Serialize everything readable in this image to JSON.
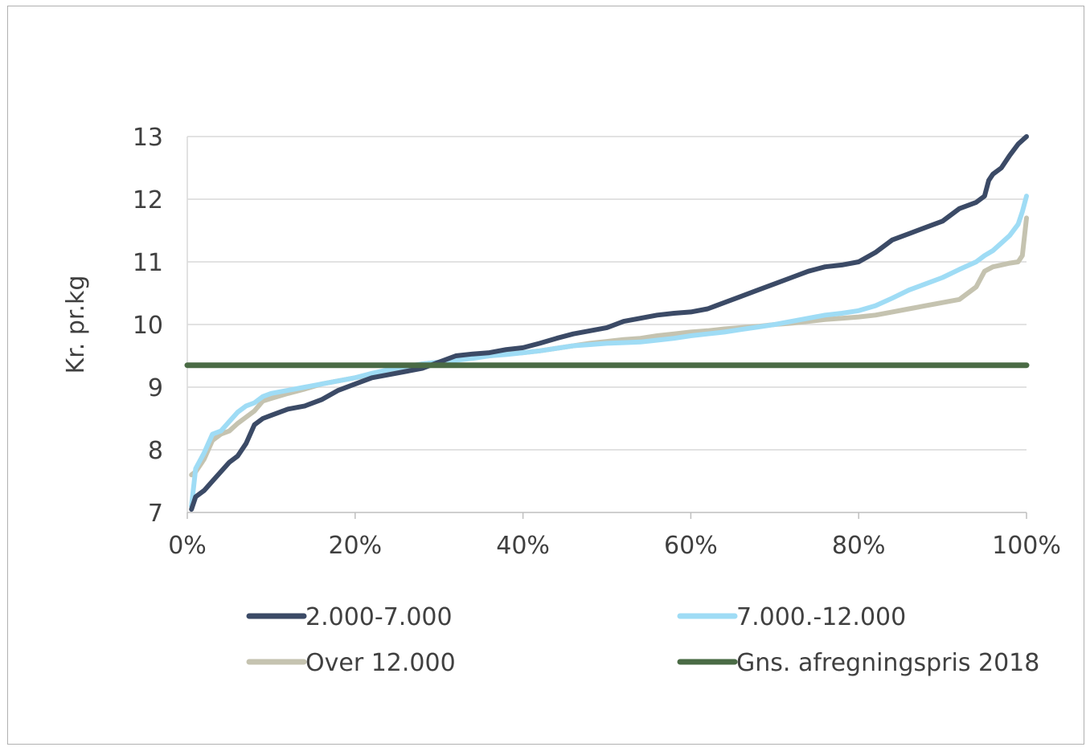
{
  "chart_data": {
    "type": "line",
    "title": "",
    "xlabel": "",
    "ylabel": "Kr. pr.kg",
    "xlim": [
      0,
      100
    ],
    "ylim": [
      7,
      13
    ],
    "x_ticks": [
      0,
      20,
      40,
      60,
      80,
      100
    ],
    "x_tick_labels": [
      "0%",
      "20%",
      "40%",
      "60%",
      "80%",
      "100%"
    ],
    "y_ticks": [
      7,
      8,
      9,
      10,
      11,
      12,
      13
    ],
    "y_tick_labels": [
      "7",
      "8",
      "9",
      "10",
      "11",
      "12",
      "13"
    ],
    "grid": "horizontal",
    "legend_position": "bottom",
    "series": [
      {
        "name": "2.000-7.000",
        "color": "#3b4a66",
        "x": [
          0.5,
          1,
          2,
          3,
          4,
          5,
          6,
          7,
          8,
          9,
          10,
          12,
          14,
          16,
          18,
          20,
          22,
          24,
          26,
          28,
          30,
          32,
          34,
          36,
          38,
          40,
          42,
          44,
          46,
          48,
          50,
          52,
          54,
          56,
          58,
          60,
          62,
          64,
          66,
          68,
          70,
          72,
          74,
          76,
          78,
          80,
          82,
          84,
          86,
          88,
          90,
          92,
          94,
          95,
          95.5,
          96,
          97,
          98,
          99,
          100
        ],
        "values": [
          7.05,
          7.25,
          7.35,
          7.5,
          7.65,
          7.8,
          7.9,
          8.1,
          8.4,
          8.5,
          8.55,
          8.65,
          8.7,
          8.8,
          8.95,
          9.05,
          9.15,
          9.2,
          9.25,
          9.3,
          9.4,
          9.5,
          9.53,
          9.55,
          9.6,
          9.63,
          9.7,
          9.78,
          9.85,
          9.9,
          9.95,
          10.05,
          10.1,
          10.15,
          10.18,
          10.2,
          10.25,
          10.35,
          10.45,
          10.55,
          10.65,
          10.75,
          10.85,
          10.92,
          10.95,
          11.0,
          11.15,
          11.35,
          11.45,
          11.55,
          11.65,
          11.85,
          11.95,
          12.05,
          12.3,
          12.4,
          12.5,
          12.7,
          12.88,
          13.0
        ]
      },
      {
        "name": "7.000.-12.000",
        "color": "#9fdcf5",
        "x": [
          0.5,
          1,
          2,
          3,
          4,
          5,
          6,
          7,
          8,
          9,
          10,
          12,
          14,
          16,
          18,
          20,
          22,
          24,
          26,
          28,
          30,
          32,
          34,
          36,
          38,
          40,
          42,
          44,
          46,
          48,
          50,
          52,
          54,
          56,
          58,
          60,
          62,
          64,
          66,
          68,
          70,
          72,
          74,
          76,
          78,
          80,
          82,
          84,
          86,
          88,
          90,
          92,
          94,
          95,
          96,
          97,
          98,
          99,
          99.5,
          100
        ],
        "values": [
          7.1,
          7.7,
          7.95,
          8.25,
          8.3,
          8.45,
          8.6,
          8.7,
          8.75,
          8.85,
          8.9,
          8.95,
          9.0,
          9.05,
          9.1,
          9.15,
          9.22,
          9.28,
          9.33,
          9.37,
          9.4,
          9.43,
          9.46,
          9.5,
          9.52,
          9.55,
          9.58,
          9.62,
          9.66,
          9.68,
          9.7,
          9.71,
          9.72,
          9.75,
          9.78,
          9.82,
          9.85,
          9.88,
          9.92,
          9.96,
          10.0,
          10.05,
          10.1,
          10.15,
          10.18,
          10.22,
          10.3,
          10.42,
          10.55,
          10.65,
          10.75,
          10.88,
          11.0,
          11.1,
          11.18,
          11.3,
          11.42,
          11.6,
          11.8,
          12.05
        ]
      },
      {
        "name": "Over 12.000",
        "color": "#c5c3b0",
        "x": [
          0.5,
          1,
          2,
          3,
          4,
          5,
          6,
          7,
          8,
          9,
          10,
          12,
          14,
          16,
          18,
          20,
          22,
          24,
          26,
          28,
          30,
          32,
          34,
          36,
          38,
          40,
          42,
          44,
          46,
          48,
          50,
          52,
          54,
          56,
          58,
          60,
          62,
          64,
          66,
          68,
          70,
          72,
          74,
          76,
          78,
          80,
          82,
          84,
          86,
          88,
          90,
          92,
          94,
          95,
          96,
          97,
          98,
          99,
          99.5,
          100
        ],
        "values": [
          7.6,
          7.65,
          7.85,
          8.15,
          8.25,
          8.3,
          8.42,
          8.52,
          8.62,
          8.78,
          8.82,
          8.9,
          8.97,
          9.05,
          9.1,
          9.15,
          9.2,
          9.27,
          9.32,
          9.37,
          9.4,
          9.44,
          9.48,
          9.5,
          9.53,
          9.55,
          9.58,
          9.62,
          9.66,
          9.7,
          9.73,
          9.76,
          9.78,
          9.82,
          9.85,
          9.88,
          9.9,
          9.93,
          9.95,
          9.97,
          10.0,
          10.02,
          10.05,
          10.08,
          10.1,
          10.12,
          10.15,
          10.2,
          10.25,
          10.3,
          10.35,
          10.4,
          10.6,
          10.85,
          10.92,
          10.95,
          10.98,
          11.0,
          11.1,
          11.7
        ]
      },
      {
        "name": "Gns. afregningspris 2018",
        "color": "#4a6b45",
        "x": [
          0,
          100
        ],
        "values": [
          9.35,
          9.35
        ]
      }
    ]
  }
}
